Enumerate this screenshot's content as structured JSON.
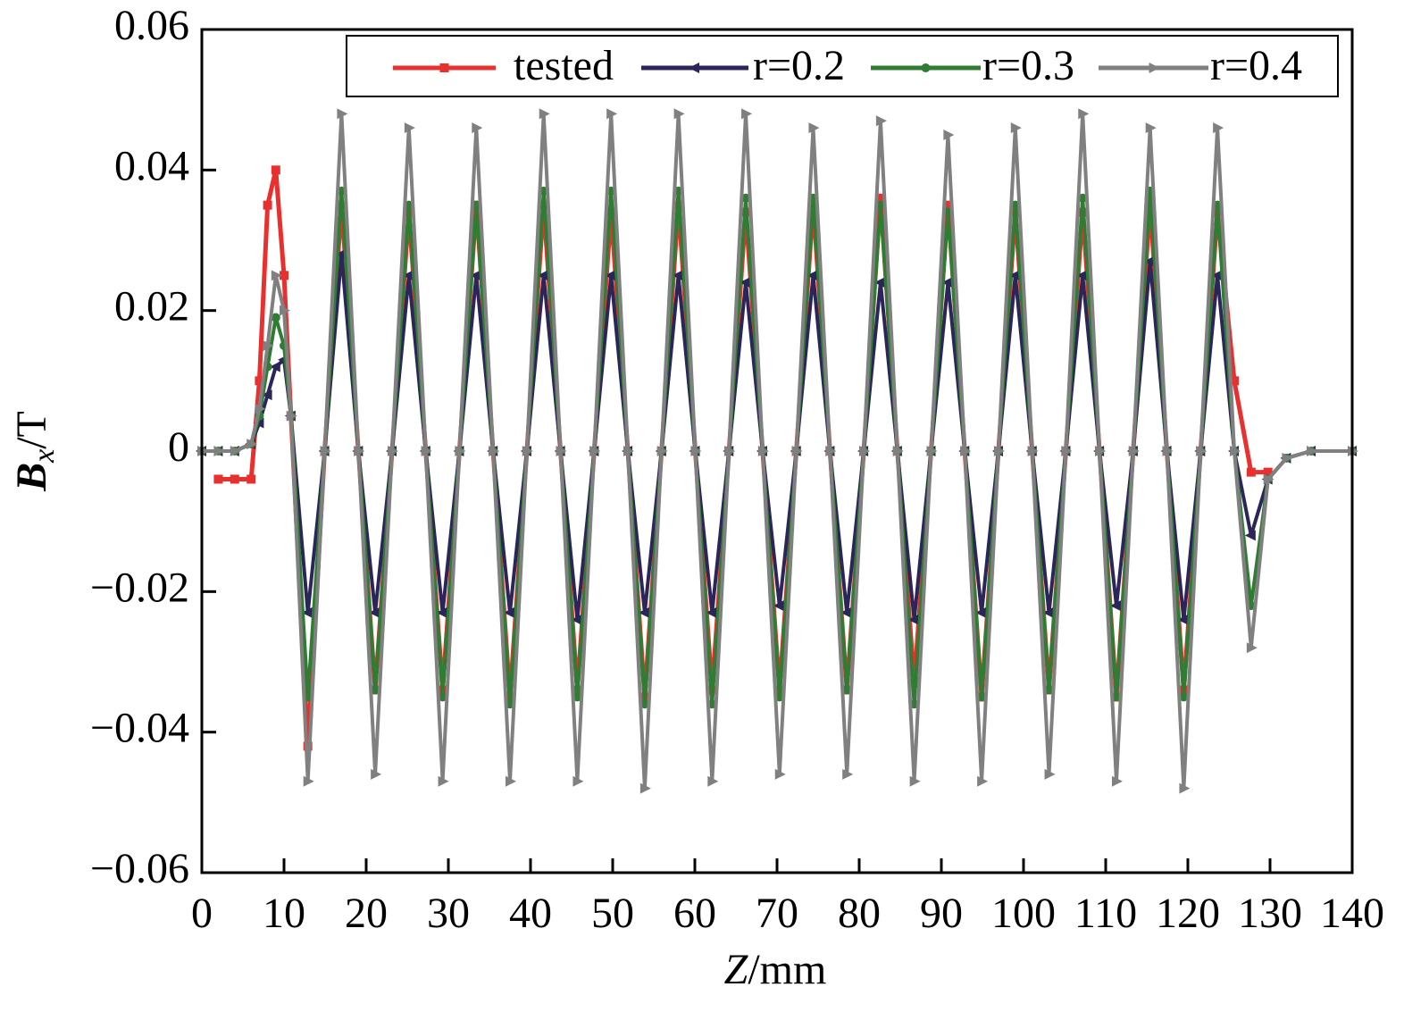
{
  "chart_data": {
    "type": "line",
    "xlabel": {
      "symbol": "Z",
      "unit": "/mm"
    },
    "ylabel": {
      "symbol": "B",
      "subscript": "x",
      "unit": "/T"
    },
    "xlim": [
      0,
      140
    ],
    "xticks": [
      0,
      10,
      20,
      30,
      40,
      50,
      60,
      70,
      80,
      90,
      100,
      110,
      120,
      130,
      140
    ],
    "ylim": [
      -0.06,
      0.06
    ],
    "yticks": [
      {
        "value": -0.06,
        "label": "−0.06"
      },
      {
        "value": -0.04,
        "label": "−0.04"
      },
      {
        "value": -0.02,
        "label": "−0.02"
      },
      0,
      0.02,
      0.04,
      0.06
    ],
    "legend": "top-right",
    "x": [
      0,
      2,
      4,
      6,
      7,
      8,
      9,
      10,
      10.85,
      12.9,
      14.95,
      17,
      19.05,
      21.1,
      23.15,
      25.2,
      27.25,
      29.3,
      31.35,
      33.4,
      35.45,
      37.5,
      39.55,
      41.6,
      43.65,
      45.7,
      47.75,
      49.8,
      51.85,
      53.9,
      55.95,
      58,
      60.05,
      62.1,
      64.15,
      66.2,
      68.25,
      70.3,
      72.35,
      74.4,
      76.45,
      78.5,
      80.55,
      82.6,
      84.65,
      86.7,
      88.75,
      90.8,
      92.85,
      94.9,
      96.95,
      99,
      101.05,
      103.1,
      105.15,
      107.2,
      109.25,
      111.3,
      113.35,
      115.4,
      117.45,
      119.5,
      121.55,
      123.6,
      125.65,
      127.7,
      129.75,
      132,
      135,
      140
    ],
    "series": [
      {
        "name": "tested",
        "color": "#e8312f",
        "marker": "square",
        "values": [
          null,
          -0.004,
          -0.004,
          -0.004,
          0.01,
          0.035,
          0.04,
          0.025,
          0.005,
          -0.042,
          0,
          0.035,
          0,
          -0.034,
          0,
          0.034,
          0,
          -0.034,
          0,
          0.035,
          0,
          -0.035,
          0,
          0.035,
          0,
          -0.034,
          0,
          0.034,
          0,
          -0.035,
          0,
          0.035,
          0,
          -0.034,
          0,
          0.034,
          0,
          -0.034,
          0,
          0.035,
          0,
          -0.034,
          0,
          0.036,
          0,
          -0.033,
          0,
          0.035,
          0,
          -0.035,
          0,
          0.034,
          0,
          -0.034,
          0,
          0.034,
          0,
          -0.035,
          0,
          0.035,
          0,
          -0.034,
          0,
          0.034,
          0.01,
          -0.003,
          -0.003,
          null,
          null,
          null
        ]
      },
      {
        "name": "r=0.2",
        "color": "#2b2559",
        "marker": "left",
        "values": [
          0,
          0,
          0,
          0.001,
          0.004,
          0.008,
          0.012,
          0.013,
          0.005,
          -0.023,
          0,
          0.028,
          0,
          -0.023,
          0,
          0.025,
          0,
          -0.023,
          0,
          0.025,
          0,
          -0.023,
          0,
          0.025,
          0,
          -0.024,
          0,
          0.025,
          0,
          -0.023,
          0,
          0.025,
          0,
          -0.023,
          0,
          0.024,
          0,
          -0.022,
          0,
          0.025,
          0,
          -0.023,
          0,
          0.024,
          0,
          -0.024,
          0,
          0.024,
          0,
          -0.023,
          0,
          0.025,
          0,
          -0.023,
          0,
          0.025,
          0,
          -0.022,
          0,
          0.027,
          0,
          -0.024,
          0,
          0.025,
          0,
          -0.012,
          -0.004,
          -0.001,
          0,
          0
        ]
      },
      {
        "name": "r=0.3",
        "color": "#2f7d32",
        "marker": "circle",
        "values": [
          0,
          0,
          0,
          0.001,
          0.005,
          0.012,
          0.019,
          0.015,
          0.005,
          -0.035,
          0,
          0.037,
          0,
          -0.034,
          0,
          0.035,
          0,
          -0.035,
          0,
          0.035,
          0,
          -0.036,
          0,
          0.037,
          0,
          -0.035,
          0,
          0.037,
          0,
          -0.036,
          0,
          0.037,
          0,
          -0.036,
          0,
          0.036,
          0,
          -0.035,
          0,
          0.036,
          0,
          -0.034,
          0,
          0.035,
          0,
          -0.036,
          0,
          0.034,
          0,
          -0.035,
          0,
          0.035,
          0,
          -0.034,
          0,
          0.036,
          0,
          -0.035,
          0,
          0.037,
          0,
          -0.035,
          0,
          0.035,
          0,
          -0.022,
          -0.004,
          -0.001,
          0,
          0
        ]
      },
      {
        "name": "r=0.4",
        "color": "#808080",
        "marker": "right",
        "values": [
          0,
          0,
          0,
          0.001,
          0.006,
          0.015,
          0.025,
          0.02,
          0.005,
          -0.047,
          0,
          0.048,
          0,
          -0.046,
          0,
          0.046,
          0,
          -0.047,
          0,
          0.046,
          0,
          -0.047,
          0,
          0.048,
          0,
          -0.047,
          0,
          0.048,
          0,
          -0.048,
          0,
          0.048,
          0,
          -0.047,
          0,
          0.048,
          0,
          -0.046,
          0,
          0.046,
          0,
          -0.046,
          0,
          0.047,
          0,
          -0.047,
          0,
          0.045,
          0,
          -0.047,
          0,
          0.046,
          0,
          -0.046,
          0,
          0.048,
          0,
          -0.047,
          0,
          0.046,
          0,
          -0.048,
          0,
          0.046,
          0,
          -0.028,
          -0.004,
          -0.001,
          0,
          0
        ]
      }
    ]
  }
}
